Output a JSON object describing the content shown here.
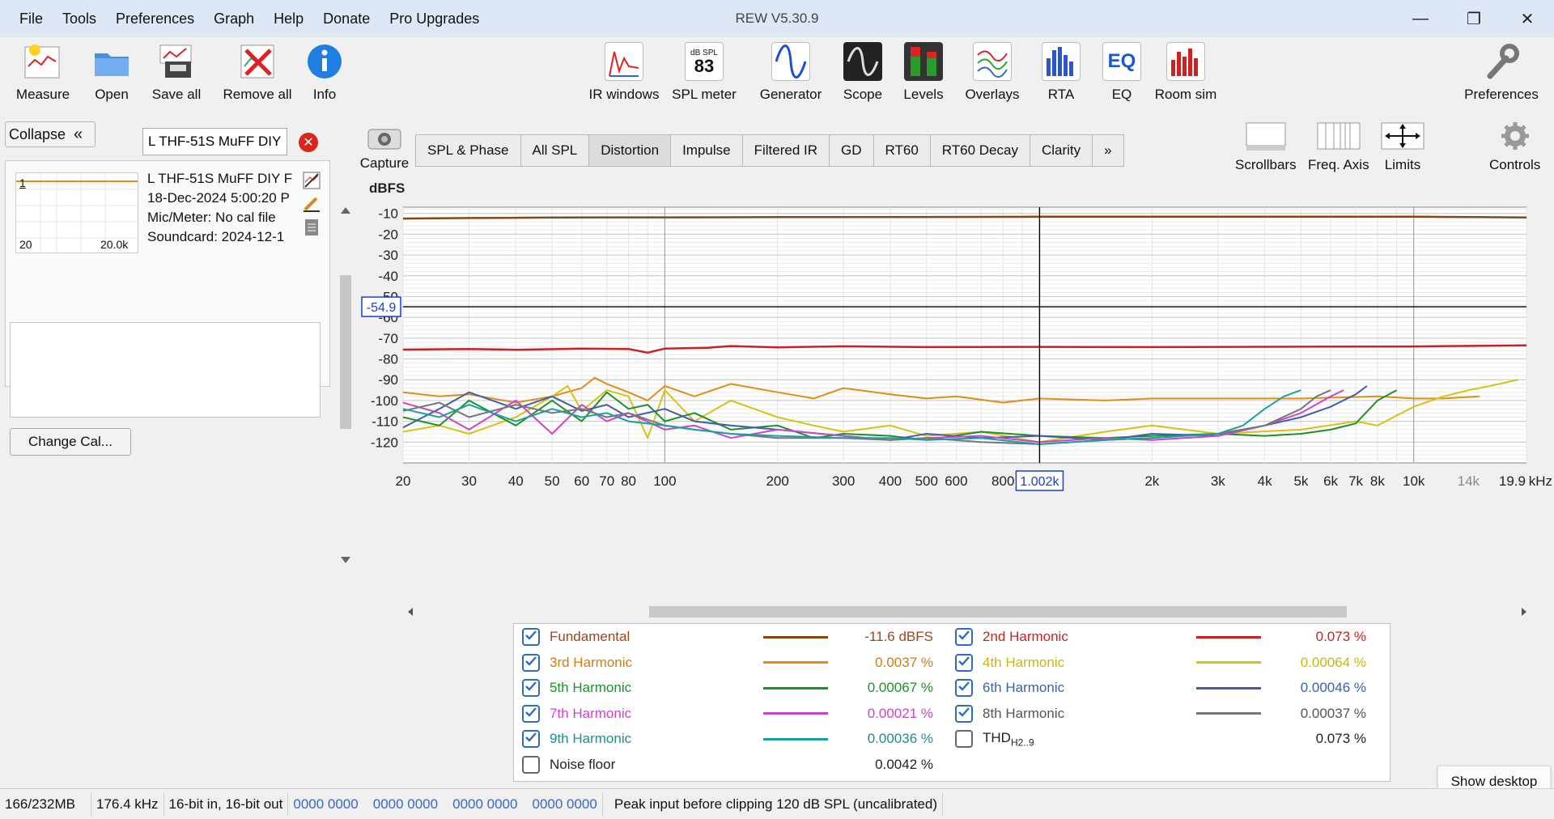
{
  "window": {
    "title": "REW V5.30.9"
  },
  "menu": [
    "File",
    "Tools",
    "Preferences",
    "Graph",
    "Help",
    "Donate",
    "Pro Upgrades"
  ],
  "toolbar": {
    "measure": "Measure",
    "open": "Open",
    "save_all": "Save all",
    "remove_all": "Remove all",
    "info": "Info",
    "ir_windows": "IR windows",
    "spl_meter": "SPL meter",
    "spl_meter_top": "dB SPL",
    "spl_meter_value": "83",
    "generator": "Generator",
    "scope": "Scope",
    "levels": "Levels",
    "overlays": "Overlays",
    "rta": "RTA",
    "eq": "EQ",
    "eq_icon_text": "EQ",
    "room_sim": "Room sim",
    "preferences": "Preferences"
  },
  "left": {
    "collapse": "Collapse",
    "measurement_name": "L THF-51S MuFF DIY",
    "thumb_index": "1",
    "thumb_xmin": "20",
    "thumb_xmax": "20.0k",
    "info_lines": [
      "L THF-51S MuFF DIY F",
      "18-Dec-2024 5:00:20 P",
      "Mic/Meter: No cal file",
      "Soundcard: 2024-12-1"
    ],
    "change_cal": "Change Cal..."
  },
  "graph_tabs": {
    "capture": "Capture",
    "tabs": [
      "SPL & Phase",
      "All SPL",
      "Distortion",
      "Impulse",
      "Filtered IR",
      "GD",
      "RT60",
      "RT60 Decay",
      "Clarity",
      "»"
    ],
    "active": "Distortion",
    "scrollbars": "Scrollbars",
    "freq_axis": "Freq. Axis",
    "limits": "Limits",
    "controls": "Controls"
  },
  "chart_data": {
    "type": "line",
    "ylabel": "dBFS",
    "xunit": "kHz",
    "xscale": "log",
    "xlim": [
      20,
      20000
    ],
    "ylim": [
      -130,
      -7
    ],
    "yticks": [
      -10,
      -20,
      -30,
      -40,
      -50,
      -60,
      -70,
      -80,
      -90,
      -100,
      -110,
      -120
    ],
    "xticks": [
      {
        "v": 20,
        "l": "20"
      },
      {
        "v": 30,
        "l": "30"
      },
      {
        "v": 40,
        "l": "40"
      },
      {
        "v": 50,
        "l": "50"
      },
      {
        "v": 60,
        "l": "60"
      },
      {
        "v": 70,
        "l": "70"
      },
      {
        "v": 80,
        "l": "80"
      },
      {
        "v": 100,
        "l": "100"
      },
      {
        "v": 200,
        "l": "200"
      },
      {
        "v": 300,
        "l": "300"
      },
      {
        "v": 400,
        "l": "400"
      },
      {
        "v": 500,
        "l": "500"
      },
      {
        "v": 600,
        "l": "600"
      },
      {
        "v": 800,
        "l": "800"
      },
      {
        "v": 2000,
        "l": "2k"
      },
      {
        "v": 3000,
        "l": "3k"
      },
      {
        "v": 4000,
        "l": "4k"
      },
      {
        "v": 5000,
        "l": "5k"
      },
      {
        "v": 6000,
        "l": "6k"
      },
      {
        "v": 7000,
        "l": "7k"
      },
      {
        "v": 8000,
        "l": "8k"
      },
      {
        "v": 10000,
        "l": "10k"
      },
      {
        "v": 14000,
        "l": "14k"
      },
      {
        "v": 19900,
        "l": "19.9"
      }
    ],
    "cursor": {
      "x": 1002,
      "x_label": "1.002k",
      "y": -54.9,
      "y_label": "-54.9"
    },
    "series": [
      {
        "name": "Fundamental",
        "color": "#8b4513",
        "width": 2.5,
        "x": [
          20,
          30,
          50,
          100,
          200,
          500,
          1000,
          2000,
          5000,
          10000,
          15000,
          20000
        ],
        "y": [
          -12.5,
          -12.2,
          -12.0,
          -11.9,
          -11.8,
          -11.7,
          -11.6,
          -11.6,
          -11.6,
          -11.6,
          -11.8,
          -12.0
        ]
      },
      {
        "name": "2nd Harmonic",
        "color": "#cc1f1f",
        "width": 2.5,
        "x": [
          20,
          30,
          40,
          60,
          80,
          90,
          100,
          130,
          150,
          200,
          300,
          500,
          1000,
          2000,
          5000,
          10000,
          20000
        ],
        "y": [
          -75.5,
          -75.2,
          -75.6,
          -75.0,
          -75.2,
          -77.0,
          -75.0,
          -74.6,
          -73.8,
          -74.4,
          -73.9,
          -74.3,
          -74.2,
          -74.3,
          -74.1,
          -74.0,
          -73.5
        ]
      },
      {
        "name": "3rd Harmonic",
        "color": "#e08c17",
        "width": 2,
        "x": [
          20,
          25,
          30,
          40,
          50,
          60,
          65,
          70,
          80,
          90,
          100,
          120,
          150,
          200,
          250,
          300,
          400,
          500,
          600,
          800,
          1000,
          1500,
          2000,
          3000,
          5000,
          8000,
          10000,
          12000,
          15000
        ],
        "y": [
          -96,
          -98,
          -97,
          -101,
          -98,
          -94,
          -89,
          -92,
          -96,
          -100,
          -93,
          -98,
          -92,
          -96,
          -99,
          -94,
          -97,
          -99,
          -98,
          -101,
          -99,
          -100,
          -99,
          -99,
          -99,
          -98,
          -99,
          -99,
          -98
        ]
      },
      {
        "name": "4th Harmonic",
        "color": "#d4c216",
        "width": 2,
        "x": [
          20,
          25,
          30,
          40,
          50,
          55,
          60,
          70,
          80,
          90,
          100,
          120,
          150,
          200,
          250,
          300,
          400,
          500,
          700,
          1000,
          1500,
          2000,
          3000,
          5000,
          7000,
          8000,
          10000,
          12000,
          14000,
          16000,
          19000
        ],
        "y": [
          -115,
          -112,
          -116,
          -108,
          -98,
          -93,
          -105,
          -95,
          -98,
          -118,
          -95,
          -110,
          -100,
          -108,
          -112,
          -115,
          -112,
          -117,
          -115,
          -120,
          -115,
          -112,
          -116,
          -114,
          -110,
          -112,
          -103,
          -98,
          -95,
          -93,
          -90
        ]
      },
      {
        "name": "5th Harmonic",
        "color": "#1f8f2a",
        "width": 2,
        "x": [
          20,
          25,
          30,
          40,
          50,
          60,
          70,
          80,
          90,
          100,
          120,
          150,
          200,
          250,
          300,
          400,
          500,
          700,
          1000,
          1500,
          2000,
          3000,
          4000,
          5000,
          6000,
          7000,
          8000,
          9000
        ],
        "y": [
          -108,
          -112,
          -100,
          -112,
          -100,
          -110,
          -96,
          -104,
          -102,
          -110,
          -106,
          -114,
          -112,
          -118,
          -116,
          -117,
          -119,
          -115,
          -117,
          -118,
          -117,
          -116,
          -117,
          -116,
          -114,
          -111,
          -100,
          -95
        ]
      },
      {
        "name": "6th Harmonic",
        "color": "#3f5fa8",
        "width": 2,
        "x": [
          20,
          25,
          30,
          40,
          50,
          60,
          70,
          80,
          100,
          120,
          150,
          200,
          300,
          400,
          500,
          700,
          1000,
          1500,
          2000,
          3000,
          4000,
          5000,
          6000,
          7000,
          7500
        ],
        "y": [
          -113,
          -104,
          -96,
          -104,
          -98,
          -105,
          -102,
          -108,
          -104,
          -110,
          -112,
          -114,
          -117,
          -119,
          -116,
          -118,
          -117,
          -119,
          -116,
          -117,
          -112,
          -108,
          -103,
          -97,
          -93
        ]
      },
      {
        "name": "7th Harmonic",
        "color": "#cc44cc",
        "width": 2,
        "x": [
          20,
          25,
          30,
          40,
          50,
          60,
          70,
          80,
          100,
          120,
          150,
          200,
          300,
          400,
          500,
          700,
          1000,
          1500,
          2000,
          3000,
          4000,
          5000,
          6000,
          6500
        ],
        "y": [
          -101,
          -106,
          -114,
          -100,
          -116,
          -102,
          -110,
          -106,
          -114,
          -112,
          -118,
          -114,
          -117,
          -119,
          -118,
          -117,
          -120,
          -118,
          -119,
          -117,
          -112,
          -106,
          -98,
          -95
        ]
      },
      {
        "name": "8th Harmonic",
        "color": "#777777",
        "width": 2,
        "x": [
          20,
          25,
          30,
          40,
          50,
          60,
          70,
          80,
          100,
          120,
          150,
          200,
          300,
          400,
          500,
          700,
          1000,
          1500,
          2000,
          3000,
          4000,
          5000,
          5500,
          6000
        ],
        "y": [
          -105,
          -101,
          -108,
          -102,
          -106,
          -104,
          -108,
          -106,
          -112,
          -114,
          -116,
          -118,
          -118,
          -119,
          -118,
          -120,
          -121,
          -119,
          -118,
          -116,
          -112,
          -104,
          -98,
          -95
        ]
      },
      {
        "name": "9th Harmonic",
        "color": "#1aa0a0",
        "width": 2,
        "x": [
          20,
          25,
          30,
          40,
          50,
          60,
          70,
          80,
          100,
          120,
          150,
          200,
          300,
          400,
          500,
          700,
          1000,
          1500,
          2000,
          3000,
          3500,
          4000,
          4500,
          5000
        ],
        "y": [
          -104,
          -108,
          -102,
          -110,
          -104,
          -108,
          -106,
          -110,
          -112,
          -114,
          -116,
          -117,
          -118,
          -118,
          -119,
          -118,
          -121,
          -119,
          -118,
          -116,
          -112,
          -104,
          -98,
          -95
        ]
      }
    ]
  },
  "legend": {
    "left": [
      {
        "name": "Fundamental",
        "color": "#8b4513",
        "name_color": "#a0451a",
        "value": "-11.6 dBFS",
        "checked": true
      },
      {
        "name": "3rd Harmonic",
        "color": "#e08c17",
        "name_color": "#d07a10",
        "value": "0.0037 %",
        "checked": true
      },
      {
        "name": "5th Harmonic",
        "color": "#1f8f2a",
        "name_color": "#1f8f2a",
        "value": "0.00067 %",
        "checked": true
      },
      {
        "name": "7th Harmonic",
        "color": "#cc44cc",
        "name_color": "#cc44cc",
        "value": "0.00021 %",
        "checked": true
      },
      {
        "name": "9th Harmonic",
        "color": "#1aa0a0",
        "name_color": "#1a9090",
        "value": "0.00036 %",
        "checked": true
      },
      {
        "name": "Noise floor",
        "color": "",
        "name_color": "#222222",
        "value": "0.0042 %",
        "checked": false
      }
    ],
    "right": [
      {
        "name": "2nd Harmonic",
        "color": "#cc1f1f",
        "name_color": "#cc1f1f",
        "value": "0.073 %",
        "checked": true
      },
      {
        "name": "4th Harmonic",
        "color": "#d4c216",
        "name_color": "#c8b80e",
        "value": "0.00064 %",
        "checked": true
      },
      {
        "name": "6th Harmonic",
        "color": "#3f5fa8",
        "name_color": "#3f5fa8",
        "value": "0.00046 %",
        "checked": true
      },
      {
        "name": "8th Harmonic",
        "color": "#777777",
        "name_color": "#555555",
        "value": "0.00037 %",
        "checked": true
      },
      {
        "name": "THD",
        "sub": "H2..9",
        "color": "",
        "name_color": "#222222",
        "value": "0.073 %",
        "checked": false
      }
    ]
  },
  "show_desktop": "Show desktop",
  "status": {
    "memory": "166/232MB",
    "rate": "176.4 kHz",
    "bits": "16-bit in, 16-bit out",
    "levels": [
      "0000 0000",
      "0000 0000",
      "0000 0000",
      "0000 0000"
    ],
    "peak": "Peak input before clipping 120 dB SPL (uncalibrated)"
  }
}
